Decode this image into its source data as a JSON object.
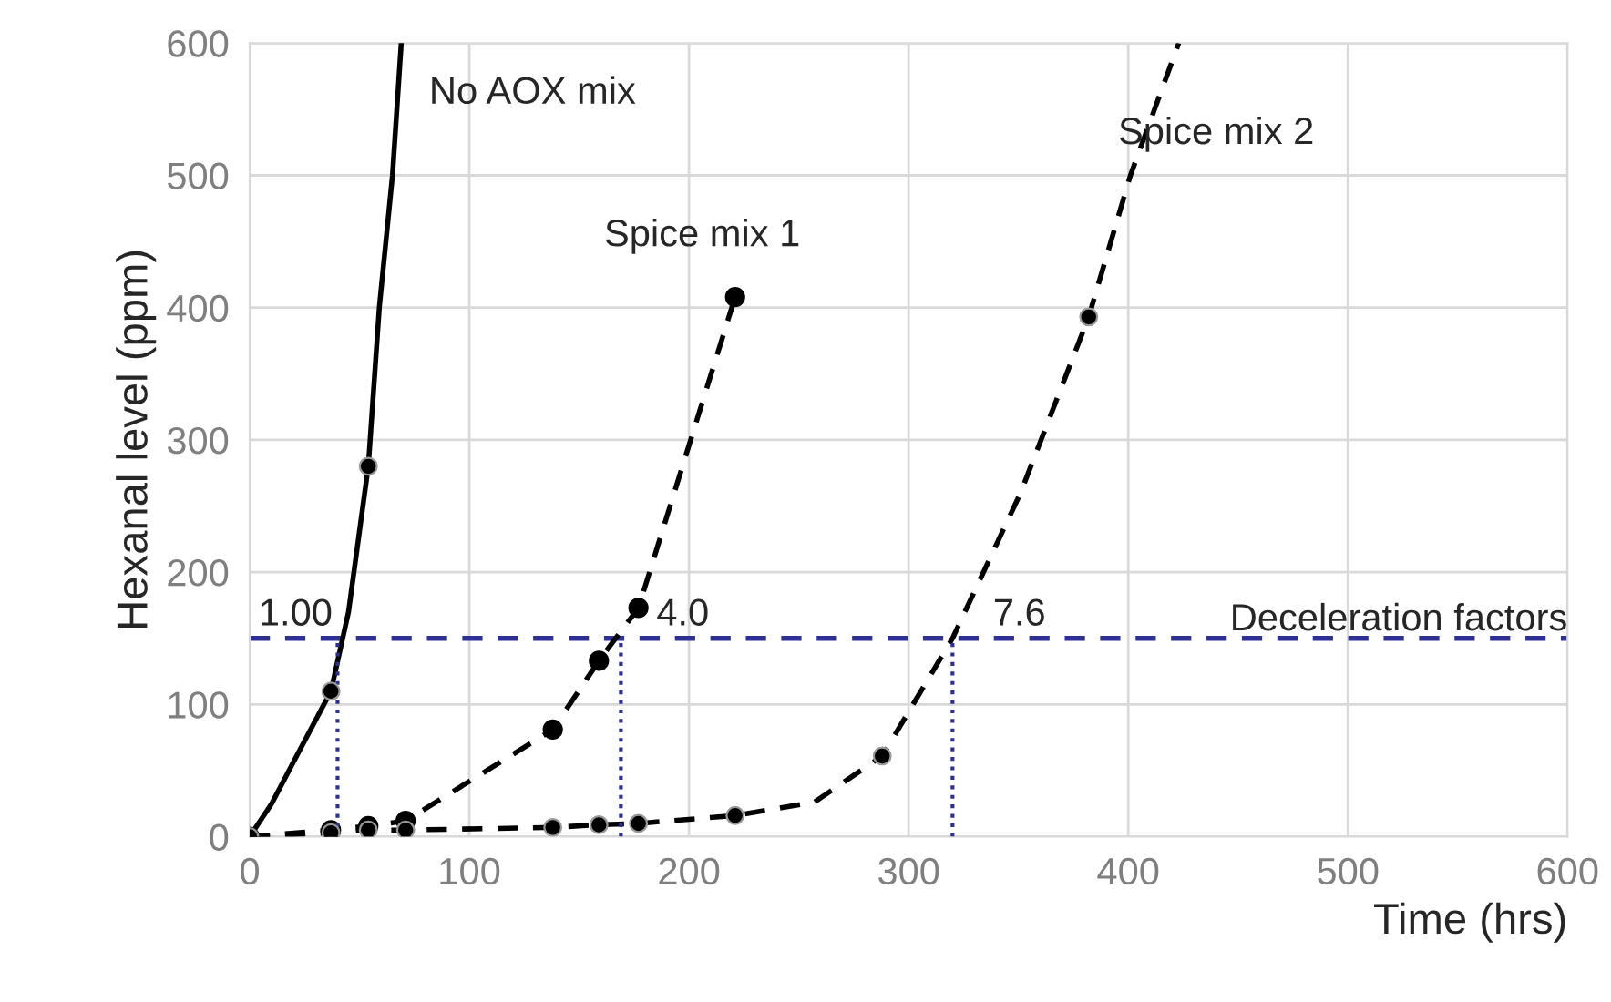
{
  "chart_data": {
    "type": "line",
    "xlabel": "Time (hrs)",
    "ylabel": "Hexanal level (ppm)",
    "xlim": [
      0,
      600
    ],
    "ylim": [
      0,
      600
    ],
    "xticks": [
      0,
      100,
      200,
      300,
      400,
      500,
      600
    ],
    "yticks": [
      0,
      100,
      200,
      300,
      400,
      500,
      600
    ],
    "grid": true,
    "legend": false,
    "series": [
      {
        "name": "No AOX mix",
        "color": "#000000",
        "line_style": "solid",
        "marker": "none",
        "x": [
          0,
          10,
          22,
          37,
          45,
          54,
          59,
          65,
          69
        ],
        "values": [
          0,
          25,
          63,
          110,
          170,
          280,
          400,
          500,
          600
        ]
      },
      {
        "type": "scatter",
        "color": "#000000",
        "marker": "circle",
        "x": [
          0,
          37,
          54
        ],
        "values": [
          0,
          110,
          280
        ]
      },
      {
        "name": "Spice mix 1",
        "color": "#000000",
        "line_style": "dashed",
        "marker": "circle",
        "x": [
          0,
          37,
          54,
          71,
          138,
          159,
          177,
          221
        ],
        "values": [
          0,
          5,
          8,
          12,
          81,
          133,
          173,
          408
        ]
      },
      {
        "name": "Spice mix 2",
        "color": "#000000",
        "line_style": "dashed",
        "marker": "none",
        "x": [
          0,
          37,
          54,
          71,
          138,
          159,
          177,
          221,
          257,
          288,
          320,
          351,
          382,
          401,
          423
        ],
        "values": [
          0,
          3,
          5,
          5,
          7,
          9,
          10,
          16,
          26,
          61,
          150,
          260,
          393,
          500,
          600
        ]
      },
      {
        "type": "scatter",
        "color": "#000000",
        "marker": "circle",
        "x": [
          37,
          54,
          71,
          138,
          159,
          177,
          221,
          288,
          382
        ],
        "values": [
          3,
          5,
          5,
          7,
          9,
          10,
          16,
          61,
          393
        ]
      },
      {
        "type": "line",
        "color": "#2e3192",
        "line_style": "dotted",
        "marker": "none",
        "x": [
          40,
          40
        ],
        "values": [
          0,
          150
        ]
      },
      {
        "type": "line",
        "color": "#2e3192",
        "line_style": "dotted",
        "marker": "none",
        "x": [
          169,
          169
        ],
        "values": [
          0,
          150
        ]
      },
      {
        "type": "line",
        "color": "#2e3192",
        "line_style": "dotted",
        "marker": "none",
        "x": [
          320,
          320
        ],
        "values": [
          0,
          150
        ]
      }
    ],
    "ref_lines": [
      {
        "axis": "y",
        "value": 150,
        "label": "Deceleration factors",
        "color": "#2e3192",
        "line_style": "dashed"
      }
    ],
    "annotations": [
      {
        "text": "1.00",
        "x": 40,
        "y": 150
      },
      {
        "text": "4.0",
        "x": 169,
        "y": 150
      },
      {
        "text": "7.6",
        "x": 320,
        "y": 150
      }
    ]
  }
}
